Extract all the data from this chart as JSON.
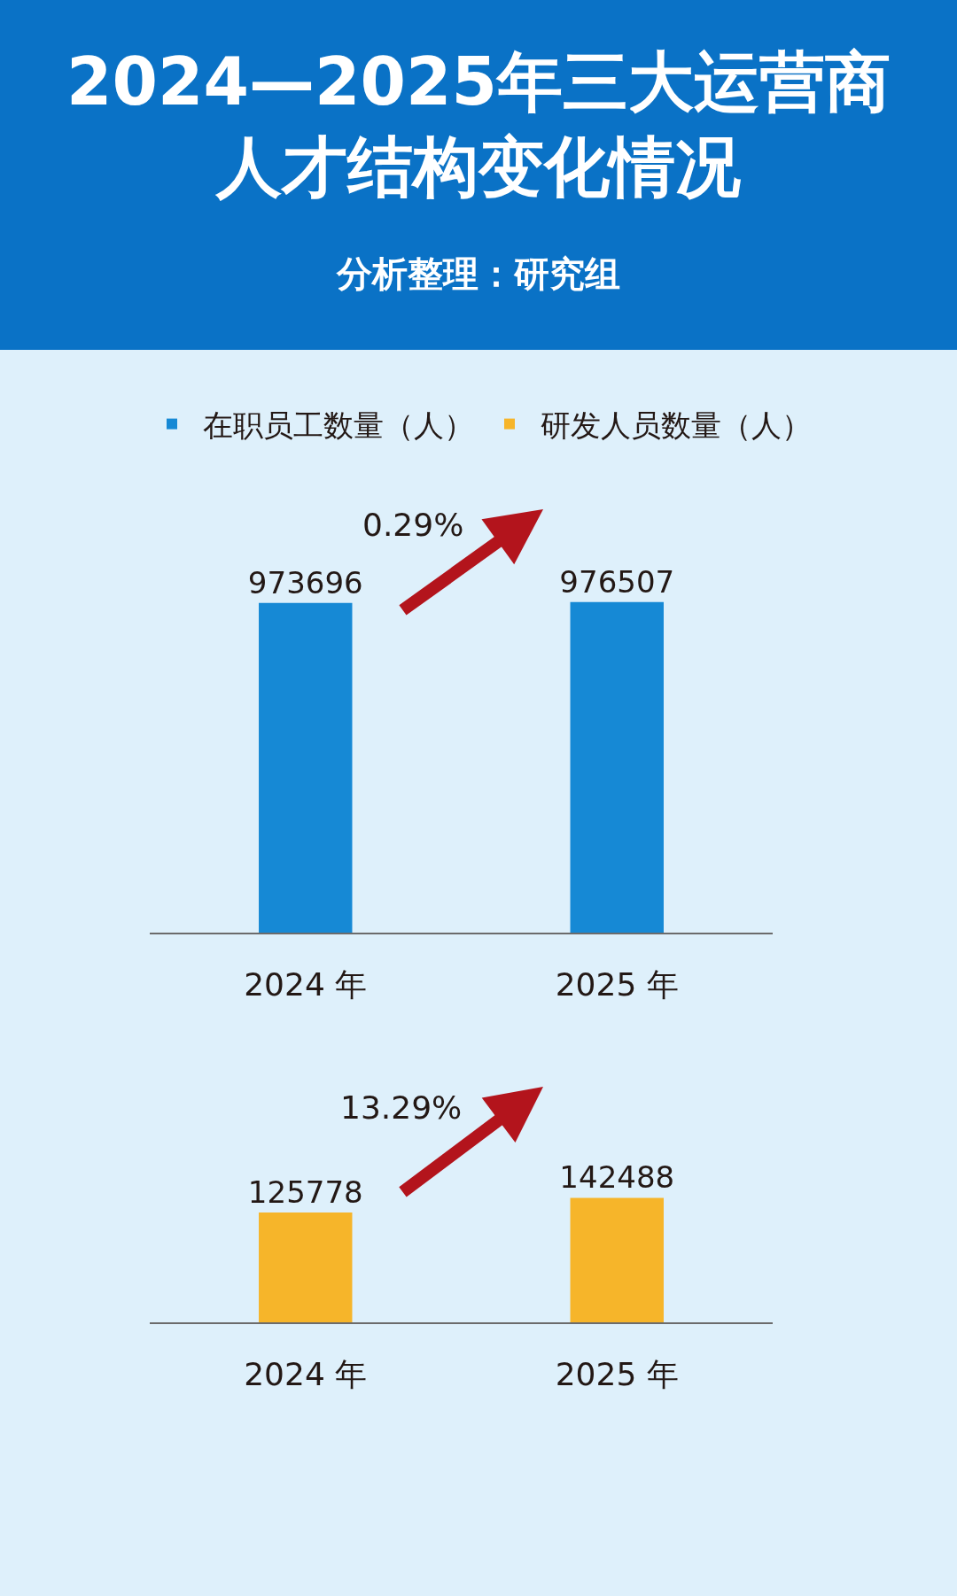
{
  "chart_data": [
    {
      "type": "bar",
      "title": "2024—2025年三大运营商人才结构变化情况",
      "subtitle": "分析整理：研究组",
      "categories": [
        "2024 年",
        "2025 年"
      ],
      "series": [
        {
          "name": "在职员工数量（人）",
          "color": "#1689d5",
          "values": [
            973696,
            976507
          ]
        }
      ],
      "data_labels": true,
      "annotations": [
        "0.29%"
      ],
      "legend": "top",
      "tick_labels": "x"
    },
    {
      "type": "bar",
      "categories": [
        "2024 年",
        "2025 年"
      ],
      "series": [
        {
          "name": "研发人员数量（人）",
          "color": "#f6b52a",
          "values": [
            125778,
            142488
          ]
        }
      ],
      "data_labels": true,
      "annotations": [
        "13.29%"
      ],
      "legend": "top",
      "tick_labels": "x"
    }
  ]
}
